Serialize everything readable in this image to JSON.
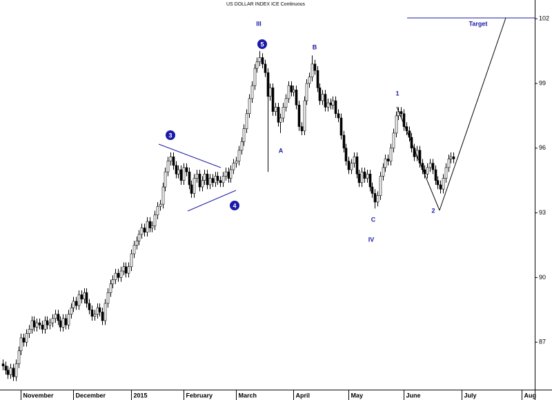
{
  "chart_data": {
    "type": "candlestick",
    "title": "US DOLLAR INDEX ICE Continuous",
    "x": [
      1,
      2,
      3,
      4,
      5,
      6,
      7,
      8,
      9,
      10,
      11,
      12,
      13,
      14,
      15,
      16,
      17,
      18,
      19,
      20,
      21,
      22,
      23,
      24,
      25,
      26,
      27,
      28,
      29,
      30,
      31,
      32,
      33,
      34,
      35,
      36,
      37,
      38,
      39,
      40,
      41,
      42,
      43,
      44,
      45,
      46,
      47,
      48,
      49,
      50,
      51,
      52,
      53,
      54,
      55,
      56,
      57,
      58,
      59,
      60,
      61,
      62,
      63,
      64,
      65,
      66,
      67,
      68,
      69,
      70,
      71,
      72,
      73,
      74,
      75,
      76,
      77,
      78,
      79,
      80,
      81,
      82,
      83,
      84,
      85,
      86,
      87,
      88,
      89,
      90,
      91,
      92,
      93,
      94,
      95,
      96,
      97,
      98,
      99,
      100,
      101,
      102,
      103,
      104,
      105,
      106,
      107,
      108,
      109,
      110,
      111,
      112,
      113,
      114,
      115,
      116,
      117,
      118,
      119,
      120,
      121,
      122,
      123,
      124,
      125,
      126,
      127,
      128,
      129,
      130,
      131,
      132,
      133,
      134,
      135,
      136,
      137,
      138,
      139,
      140,
      141,
      142,
      143,
      144,
      145,
      146,
      147,
      148,
      149,
      150,
      151,
      152,
      153,
      154,
      155,
      156,
      157,
      158,
      159,
      160,
      161,
      162,
      163,
      164,
      165,
      166,
      167,
      168,
      169,
      170,
      171,
      172,
      173
    ],
    "ohlc": [
      [
        86.0,
        86.2,
        85.7,
        85.9
      ],
      [
        85.9,
        86.1,
        85.5,
        85.7
      ],
      [
        85.7,
        85.9,
        85.3,
        85.5
      ],
      [
        85.5,
        86.0,
        85.3,
        85.8
      ],
      [
        85.8,
        86.0,
        85.2,
        85.4
      ],
      [
        85.4,
        86.2,
        85.2,
        86.0
      ],
      [
        86.0,
        86.8,
        85.8,
        86.6
      ],
      [
        86.6,
        87.4,
        86.4,
        87.2
      ],
      [
        87.2,
        87.4,
        86.8,
        87.0
      ],
      [
        87.0,
        87.6,
        86.8,
        87.4
      ],
      [
        87.4,
        87.8,
        87.2,
        87.6
      ],
      [
        87.6,
        88.2,
        87.4,
        88.0
      ],
      [
        88.0,
        88.2,
        87.5,
        87.7
      ],
      [
        87.7,
        88.1,
        87.5,
        87.9
      ],
      [
        87.9,
        88.1,
        87.6,
        87.8
      ],
      [
        87.8,
        88.0,
        87.4,
        87.6
      ],
      [
        87.6,
        88.2,
        87.4,
        88.0
      ],
      [
        88.0,
        88.2,
        87.6,
        87.8
      ],
      [
        87.8,
        88.1,
        87.6,
        87.9
      ],
      [
        87.9,
        88.3,
        87.7,
        88.1
      ],
      [
        88.1,
        88.5,
        87.9,
        88.3
      ],
      [
        88.3,
        88.5,
        87.8,
        88.0
      ],
      [
        88.0,
        88.2,
        87.5,
        87.7
      ],
      [
        87.7,
        88.3,
        87.5,
        88.1
      ],
      [
        88.1,
        88.3,
        87.6,
        87.8
      ],
      [
        87.8,
        88.5,
        87.6,
        88.3
      ],
      [
        88.3,
        88.8,
        88.1,
        88.6
      ],
      [
        88.6,
        89.1,
        88.4,
        88.9
      ],
      [
        88.9,
        89.1,
        88.5,
        88.7
      ],
      [
        88.7,
        89.4,
        88.5,
        89.2
      ],
      [
        89.2,
        89.4,
        88.8,
        89.0
      ],
      [
        89.0,
        89.5,
        88.8,
        89.3
      ],
      [
        89.3,
        89.5,
        88.6,
        88.8
      ],
      [
        88.8,
        89.0,
        88.3,
        88.5
      ],
      [
        88.5,
        88.7,
        88.0,
        88.2
      ],
      [
        88.2,
        88.5,
        88.0,
        88.3
      ],
      [
        88.3,
        88.8,
        88.1,
        88.6
      ],
      [
        88.6,
        88.8,
        88.2,
        88.4
      ],
      [
        88.4,
        88.6,
        87.8,
        88.0
      ],
      [
        88.0,
        89.0,
        87.8,
        88.8
      ],
      [
        88.8,
        89.5,
        88.6,
        89.3
      ],
      [
        89.3,
        89.9,
        89.1,
        89.7
      ],
      [
        89.7,
        90.1,
        89.5,
        89.9
      ],
      [
        89.9,
        90.4,
        89.7,
        90.2
      ],
      [
        90.2,
        90.4,
        89.8,
        90.0
      ],
      [
        90.0,
        90.5,
        89.8,
        90.3
      ],
      [
        90.3,
        90.7,
        90.1,
        90.5
      ],
      [
        90.5,
        90.7,
        90.0,
        90.2
      ],
      [
        90.2,
        90.7,
        90.0,
        90.5
      ],
      [
        90.5,
        91.3,
        90.3,
        91.1
      ],
      [
        91.1,
        91.7,
        90.9,
        91.5
      ],
      [
        91.5,
        91.9,
        91.3,
        91.7
      ],
      [
        91.7,
        92.2,
        91.5,
        92.0
      ],
      [
        92.0,
        92.5,
        91.8,
        92.3
      ],
      [
        92.3,
        92.5,
        91.9,
        92.1
      ],
      [
        92.1,
        92.8,
        91.9,
        92.6
      ],
      [
        92.6,
        92.8,
        92.1,
        92.3
      ],
      [
        92.3,
        92.6,
        92.1,
        92.4
      ],
      [
        92.4,
        93.1,
        92.2,
        92.9
      ],
      [
        92.9,
        93.5,
        92.7,
        93.3
      ],
      [
        93.3,
        93.6,
        93.1,
        93.4
      ],
      [
        93.4,
        94.4,
        93.2,
        94.2
      ],
      [
        94.2,
        95.1,
        94.0,
        94.9
      ],
      [
        94.9,
        95.6,
        94.7,
        95.4
      ],
      [
        95.4,
        95.8,
        95.2,
        95.6
      ],
      [
        95.6,
        95.8,
        95.0,
        95.2
      ],
      [
        95.2,
        95.4,
        94.6,
        94.8
      ],
      [
        94.8,
        95.2,
        94.6,
        95.0
      ],
      [
        95.0,
        95.2,
        94.3,
        94.5
      ],
      [
        94.5,
        95.3,
        94.3,
        95.1
      ],
      [
        95.1,
        95.3,
        94.7,
        94.9
      ],
      [
        94.9,
        95.1,
        94.1,
        94.3
      ],
      [
        94.3,
        94.5,
        93.7,
        93.9
      ],
      [
        93.9,
        94.8,
        93.7,
        94.6
      ],
      [
        94.6,
        95.0,
        94.4,
        94.8
      ],
      [
        94.8,
        95.0,
        94.0,
        94.2
      ],
      [
        94.2,
        94.7,
        94.0,
        94.5
      ],
      [
        94.5,
        95.0,
        94.3,
        94.8
      ],
      [
        94.8,
        95.0,
        94.1,
        94.3
      ],
      [
        94.3,
        94.8,
        94.1,
        94.6
      ],
      [
        94.6,
        94.8,
        94.2,
        94.4
      ],
      [
        94.4,
        94.9,
        94.2,
        94.7
      ],
      [
        94.7,
        94.9,
        94.3,
        94.5
      ],
      [
        94.5,
        94.7,
        94.2,
        94.4
      ],
      [
        94.4,
        94.9,
        94.2,
        94.7
      ],
      [
        94.7,
        95.1,
        94.5,
        94.9
      ],
      [
        94.9,
        95.1,
        94.4,
        94.6
      ],
      [
        94.6,
        95.2,
        94.4,
        95.0
      ],
      [
        95.0,
        95.5,
        94.8,
        95.3
      ],
      [
        95.3,
        95.6,
        95.1,
        95.4
      ],
      [
        95.4,
        96.1,
        95.2,
        95.9
      ],
      [
        95.9,
        96.5,
        95.7,
        96.3
      ],
      [
        96.3,
        97.1,
        96.1,
        96.9
      ],
      [
        96.9,
        97.8,
        96.7,
        97.6
      ],
      [
        97.6,
        98.5,
        97.4,
        98.3
      ],
      [
        98.3,
        99.1,
        98.1,
        98.9
      ],
      [
        98.9,
        99.9,
        98.7,
        99.7
      ],
      [
        99.7,
        100.2,
        99.5,
        100.0
      ],
      [
        100.0,
        100.5,
        99.8,
        100.2
      ],
      [
        100.2,
        100.4,
        99.7,
        99.9
      ],
      [
        99.9,
        100.1,
        99.3,
        99.5
      ],
      [
        99.5,
        99.7,
        94.9,
        98.4
      ],
      [
        98.4,
        99.0,
        98.2,
        98.8
      ],
      [
        98.8,
        99.0,
        97.5,
        97.7
      ],
      [
        97.7,
        98.1,
        97.5,
        97.9
      ],
      [
        97.9,
        98.1,
        97.0,
        97.2
      ],
      [
        97.2,
        97.6,
        96.7,
        97.4
      ],
      [
        97.4,
        98.1,
        97.2,
        97.9
      ],
      [
        97.9,
        98.5,
        97.7,
        98.3
      ],
      [
        98.3,
        99.1,
        98.1,
        98.9
      ],
      [
        98.9,
        99.1,
        98.4,
        98.6
      ],
      [
        98.6,
        98.9,
        98.4,
        98.7
      ],
      [
        98.7,
        98.9,
        97.8,
        98.0
      ],
      [
        98.0,
        98.2,
        96.8,
        97.0
      ],
      [
        97.0,
        97.2,
        96.6,
        96.8
      ],
      [
        96.8,
        98.4,
        96.6,
        98.2
      ],
      [
        98.2,
        99.2,
        98.0,
        99.0
      ],
      [
        99.0,
        99.5,
        98.8,
        99.3
      ],
      [
        99.3,
        100.3,
        99.1,
        99.9
      ],
      [
        99.9,
        100.1,
        99.4,
        99.6
      ],
      [
        99.6,
        99.8,
        98.6,
        98.8
      ],
      [
        98.8,
        99.0,
        98.0,
        98.2
      ],
      [
        98.2,
        98.7,
        98.0,
        98.5
      ],
      [
        98.5,
        98.7,
        97.7,
        97.9
      ],
      [
        97.9,
        98.3,
        97.7,
        98.1
      ],
      [
        98.1,
        98.3,
        97.8,
        98.0
      ],
      [
        98.0,
        98.4,
        97.8,
        98.2
      ],
      [
        98.2,
        98.4,
        97.4,
        97.6
      ],
      [
        97.6,
        97.8,
        97.2,
        97.4
      ],
      [
        97.4,
        97.6,
        96.4,
        96.6
      ],
      [
        96.6,
        96.8,
        95.8,
        96.0
      ],
      [
        96.0,
        96.2,
        95.2,
        95.4
      ],
      [
        95.4,
        95.6,
        94.8,
        95.0
      ],
      [
        95.0,
        95.5,
        94.8,
        95.3
      ],
      [
        95.3,
        95.8,
        95.1,
        95.6
      ],
      [
        95.6,
        95.8,
        94.6,
        94.8
      ],
      [
        94.8,
        95.0,
        94.2,
        94.4
      ],
      [
        94.4,
        95.1,
        94.2,
        94.9
      ],
      [
        94.9,
        95.1,
        94.4,
        94.6
      ],
      [
        94.6,
        95.0,
        94.4,
        94.8
      ],
      [
        94.8,
        95.0,
        94.0,
        94.2
      ],
      [
        94.2,
        94.4,
        93.7,
        93.9
      ],
      [
        93.9,
        94.1,
        93.2,
        93.5
      ],
      [
        93.5,
        94.0,
        93.3,
        93.8
      ],
      [
        93.8,
        94.9,
        93.6,
        94.7
      ],
      [
        94.7,
        95.3,
        94.5,
        95.1
      ],
      [
        95.1,
        95.7,
        94.9,
        95.5
      ],
      [
        95.5,
        95.7,
        95.2,
        95.4
      ],
      [
        95.4,
        96.2,
        95.2,
        96.0
      ],
      [
        96.0,
        96.9,
        95.8,
        96.7
      ],
      [
        96.7,
        97.7,
        96.5,
        97.5
      ],
      [
        97.5,
        97.9,
        97.3,
        97.7
      ],
      [
        97.7,
        97.9,
        97.4,
        97.6
      ],
      [
        97.6,
        97.8,
        96.8,
        97.0
      ],
      [
        97.0,
        97.2,
        96.6,
        96.8
      ],
      [
        96.8,
        97.0,
        96.3,
        96.5
      ],
      [
        96.5,
        96.7,
        95.8,
        96.0
      ],
      [
        96.0,
        96.2,
        95.4,
        95.6
      ],
      [
        95.6,
        96.1,
        95.4,
        95.9
      ],
      [
        95.9,
        96.1,
        95.1,
        95.3
      ],
      [
        95.3,
        95.5,
        94.8,
        95.0
      ],
      [
        95.0,
        95.2,
        94.6,
        94.8
      ],
      [
        94.8,
        95.3,
        94.6,
        95.1
      ],
      [
        95.1,
        95.5,
        94.9,
        95.3
      ],
      [
        95.3,
        95.5,
        94.8,
        95.0
      ],
      [
        95.0,
        95.2,
        94.3,
        94.5
      ],
      [
        94.5,
        94.7,
        94.1,
        94.3
      ],
      [
        94.3,
        94.5,
        93.9,
        94.1
      ],
      [
        94.1,
        94.8,
        93.9,
        94.6
      ],
      [
        94.6,
        95.3,
        94.4,
        95.1
      ],
      [
        95.1,
        95.7,
        94.9,
        95.5
      ],
      [
        95.5,
        95.8,
        95.3,
        95.6
      ],
      [
        95.6,
        95.8,
        95.3,
        95.5
      ]
    ],
    "xlim": [
      0,
      204
    ],
    "xticks": [
      {
        "value": 8,
        "label": "November"
      },
      {
        "value": 28,
        "label": "December"
      },
      {
        "value": 50,
        "label": "2015"
      },
      {
        "value": 70,
        "label": "February"
      },
      {
        "value": 90,
        "label": "March"
      },
      {
        "value": 112,
        "label": "April"
      },
      {
        "value": 133,
        "label": "May"
      },
      {
        "value": 154,
        "label": "June"
      },
      {
        "value": 176,
        "label": "July"
      },
      {
        "value": 199,
        "label": "Aug"
      }
    ],
    "ylim": [
      84.8,
      102.87
    ],
    "yticks": [
      87,
      90,
      93,
      96,
      99,
      102
    ],
    "up_color": "#ffffff",
    "down_color": "#000000",
    "annotation_color": "#1a1aa8",
    "annotations": [
      "III",
      "5",
      "3",
      "4",
      "A",
      "B",
      "C",
      "1",
      "2",
      "IV",
      "Target"
    ]
  }
}
